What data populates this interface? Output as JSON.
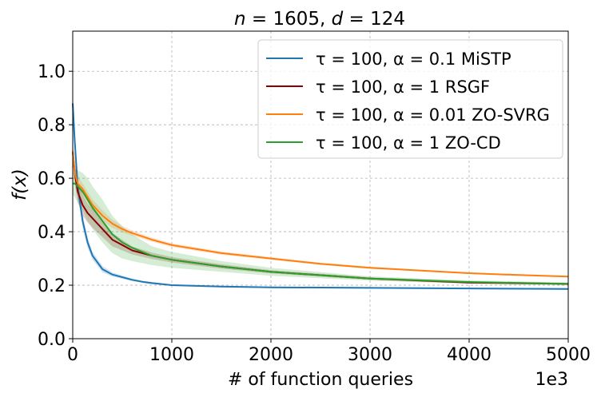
{
  "chart_data": {
    "type": "line",
    "title": "n = 1605,  d = 124",
    "title_parts": {
      "n_label": "n",
      "n_value": "1605",
      "d_label": "d",
      "d_value": "124"
    },
    "xlabel": "# of function queries",
    "ylabel": "f(x)",
    "x_scale_label": "1e3",
    "xlim": [
      0,
      5000
    ],
    "ylim": [
      0,
      1.15
    ],
    "xticks": [
      0,
      1000,
      2000,
      3000,
      4000,
      5000
    ],
    "xtick_labels": [
      "0",
      "1000",
      "2000",
      "3000",
      "4000",
      "5000"
    ],
    "yticks": [
      0.0,
      0.2,
      0.4,
      0.6,
      0.8,
      1.0
    ],
    "ytick_labels": [
      "0.0",
      "0.2",
      "0.4",
      "0.6",
      "0.8",
      "1.0"
    ],
    "grid": true,
    "legend_position": "top-right",
    "series": [
      {
        "name": "τ = 100, α = 0.1 MiSTP",
        "color": "#1f77b4",
        "x": [
          0,
          20,
          50,
          100,
          150,
          200,
          300,
          400,
          500,
          600,
          700,
          800,
          1000,
          1500,
          2000,
          3000,
          4000,
          5000
        ],
        "y": [
          0.88,
          0.74,
          0.57,
          0.44,
          0.36,
          0.31,
          0.26,
          0.24,
          0.23,
          0.22,
          0.213,
          0.208,
          0.2,
          0.195,
          0.192,
          0.19,
          0.188,
          0.186
        ],
        "band": [
          0.04,
          0.035,
          0.03,
          0.025,
          0.02,
          0.015,
          0.012,
          0.008,
          0.006,
          0.005,
          0.004,
          0.004,
          0.003,
          0.003,
          0.003,
          0.003,
          0.003,
          0.003
        ]
      },
      {
        "name": "τ = 100, α = 1 RSGF",
        "color": "#8b0000",
        "x": [
          0,
          20,
          50,
          100,
          150,
          200,
          300,
          400,
          500,
          600,
          800,
          1000,
          1500,
          2000,
          3000,
          4000,
          5000
        ],
        "y": [
          0.7,
          0.62,
          0.55,
          0.5,
          0.47,
          0.45,
          0.41,
          0.37,
          0.35,
          0.33,
          0.31,
          0.295,
          0.27,
          0.25,
          0.225,
          0.21,
          0.205
        ],
        "band": [
          0.04,
          0.04,
          0.04,
          0.04,
          0.035,
          0.035,
          0.03,
          0.025,
          0.02,
          0.015,
          0.012,
          0.01,
          0.008,
          0.006,
          0.005,
          0.004,
          0.004
        ]
      },
      {
        "name": "τ = 100, α = 0.01 ZO-SVRG",
        "color": "#ff7f0e",
        "x": [
          0,
          20,
          50,
          100,
          200,
          300,
          400,
          500,
          600,
          800,
          1000,
          1500,
          2000,
          2500,
          3000,
          3500,
          4000,
          4500,
          5000
        ],
        "y": [
          0.7,
          0.62,
          0.58,
          0.56,
          0.5,
          0.46,
          0.43,
          0.41,
          0.395,
          0.37,
          0.35,
          0.32,
          0.3,
          0.28,
          0.265,
          0.255,
          0.245,
          0.238,
          0.232
        ],
        "band": [
          0.03,
          0.03,
          0.03,
          0.02,
          0.02,
          0.02,
          0.015,
          0.012,
          0.01,
          0.008,
          0.007,
          0.006,
          0.005,
          0.004,
          0.004,
          0.003,
          0.003,
          0.003,
          0.003
        ]
      },
      {
        "name": "τ = 100, α = 1 ZO-CD",
        "color": "#2ca02c",
        "x": [
          0,
          20,
          50,
          100,
          150,
          200,
          300,
          400,
          500,
          600,
          800,
          1000,
          1500,
          2000,
          3000,
          4000,
          5000
        ],
        "y": [
          0.58,
          0.58,
          0.57,
          0.55,
          0.52,
          0.49,
          0.44,
          0.39,
          0.36,
          0.34,
          0.31,
          0.295,
          0.27,
          0.25,
          0.225,
          0.212,
          0.205
        ],
        "band": [
          0.04,
          0.05,
          0.06,
          0.07,
          0.08,
          0.08,
          0.08,
          0.07,
          0.06,
          0.05,
          0.035,
          0.03,
          0.02,
          0.015,
          0.008,
          0.006,
          0.005
        ]
      }
    ]
  }
}
